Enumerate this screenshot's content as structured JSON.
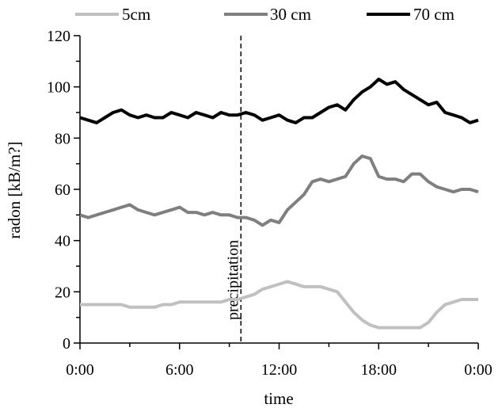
{
  "chart_data": {
    "type": "line",
    "title": "",
    "xlabel": "time",
    "ylabel": "radon [kB/m?]",
    "x_unit": "hours",
    "xlim": [
      0,
      24
    ],
    "ylim": [
      0,
      120
    ],
    "x_ticks": [
      0,
      6,
      12,
      18,
      24
    ],
    "x_tick_labels": [
      "0:00",
      "6:00",
      "12:00",
      "18:00",
      "0:00"
    ],
    "y_ticks": [
      0,
      20,
      40,
      60,
      80,
      100,
      120
    ],
    "y_tick_labels": [
      "0",
      "20",
      "40",
      "60",
      "80",
      "100",
      "120"
    ],
    "grid": false,
    "legend_position": "top",
    "annotation": {
      "text": "precipitation",
      "x": 9.7
    },
    "x": [
      0,
      0.5,
      1,
      1.5,
      2,
      2.5,
      3,
      3.5,
      4,
      4.5,
      5,
      5.5,
      6,
      6.5,
      7,
      7.5,
      8,
      8.5,
      9,
      9.5,
      10,
      10.5,
      11,
      11.5,
      12,
      12.5,
      13,
      13.5,
      14,
      14.5,
      15,
      15.5,
      16,
      16.5,
      17,
      17.5,
      18,
      18.5,
      19,
      19.5,
      20,
      20.5,
      21,
      21.5,
      22,
      22.5,
      23,
      23.5,
      24
    ],
    "series": [
      {
        "name": "5cm",
        "color": "#c0c0c0",
        "values": [
          15,
          15,
          15,
          15,
          15,
          15,
          14,
          14,
          14,
          14,
          15,
          15,
          16,
          16,
          16,
          16,
          16,
          16,
          17,
          17,
          18,
          19,
          21,
          22,
          23,
          24,
          23,
          22,
          22,
          22,
          21,
          20,
          16,
          12,
          9,
          7,
          6,
          6,
          6,
          6,
          6,
          6,
          8,
          12,
          15,
          16,
          17,
          17,
          17
        ]
      },
      {
        "name": "30 cm",
        "color": "#7f7f7f",
        "values": [
          50,
          49,
          50,
          51,
          52,
          53,
          54,
          52,
          51,
          50,
          51,
          52,
          53,
          51,
          51,
          50,
          51,
          50,
          50,
          49,
          49,
          48,
          46,
          48,
          47,
          52,
          55,
          58,
          63,
          64,
          63,
          64,
          65,
          70,
          73,
          72,
          65,
          64,
          64,
          63,
          66,
          66,
          63,
          61,
          60,
          59,
          60,
          60,
          59
        ]
      },
      {
        "name": "70 cm",
        "color": "#000000",
        "values": [
          88,
          87,
          86,
          88,
          90,
          91,
          89,
          88,
          89,
          88,
          88,
          90,
          89,
          88,
          90,
          89,
          88,
          90,
          89,
          89,
          90,
          89,
          87,
          88,
          89,
          87,
          86,
          88,
          88,
          90,
          92,
          93,
          91,
          95,
          98,
          100,
          103,
          101,
          102,
          99,
          97,
          95,
          93,
          94,
          90,
          89,
          88,
          86,
          87
        ]
      }
    ]
  }
}
